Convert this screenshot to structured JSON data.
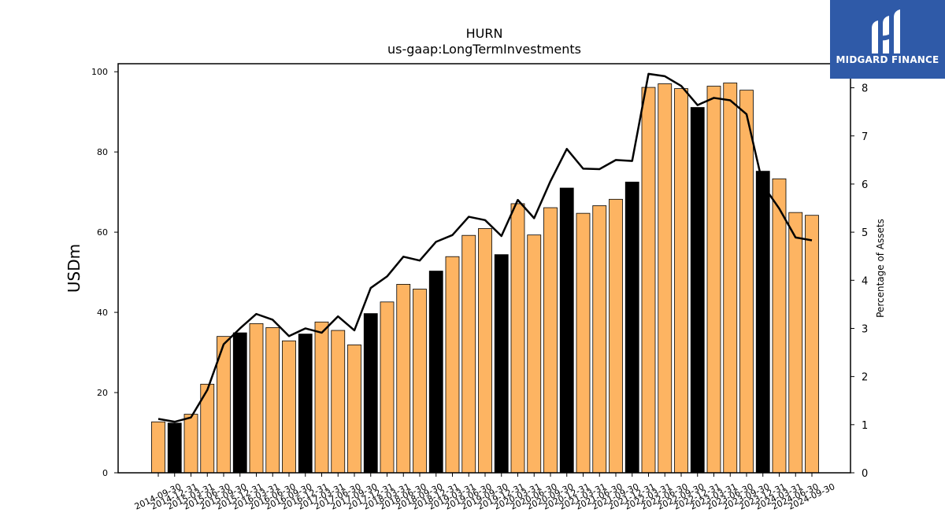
{
  "chart_data": {
    "type": "bar",
    "title": "HURN",
    "subtitle": "us-gaap:LongTermInvestments",
    "ylabel": "USDm",
    "ylabel_right": "Percentage of Assets",
    "ylim": [
      0,
      102
    ],
    "ylim_right": [
      0,
      8.5
    ],
    "yticks": [
      0,
      20,
      40,
      60,
      80,
      100
    ],
    "yticks_right": [
      0,
      1,
      2,
      3,
      4,
      5,
      6,
      7,
      8
    ],
    "categories": [
      "2014-09-30",
      "2014-12-31",
      "2015-03-31",
      "2015-06-30",
      "2015-09-30",
      "2015-12-31",
      "2016-03-31",
      "2016-06-30",
      "2016-09-30",
      "2016-12-31",
      "2017-03-31",
      "2017-06-30",
      "2017-09-30",
      "2017-12-31",
      "2018-03-31",
      "2018-06-30",
      "2018-09-30",
      "2018-12-31",
      "2019-03-31",
      "2019-06-30",
      "2019-09-30",
      "2019-12-31",
      "2020-03-31",
      "2020-06-30",
      "2020-09-30",
      "2020-12-31",
      "2021-03-31",
      "2021-06-30",
      "2021-09-30",
      "2021-12-31",
      "2022-03-31",
      "2022-06-30",
      "2022-09-30",
      "2022-12-31",
      "2023-03-31",
      "2023-06-30",
      "2023-09-30",
      "2023-12-31",
      "2024-03-31",
      "2024-06-30",
      "2024-09-30"
    ],
    "series": [
      {
        "type": "bar",
        "axis": "left",
        "values": [
          12.7,
          12.4,
          14.6,
          22.1,
          34.0,
          34.9,
          37.2,
          36.2,
          32.9,
          34.6,
          37.6,
          35.5,
          31.9,
          39.7,
          42.6,
          47.0,
          45.8,
          50.3,
          53.9,
          59.2,
          60.9,
          54.4,
          67.1,
          59.3,
          66.1,
          71.0,
          64.7,
          66.6,
          68.2,
          72.5,
          96.1,
          97.0,
          95.8,
          91.1,
          96.4,
          97.2,
          95.4,
          75.2,
          73.3,
          64.9,
          64.2
        ],
        "highlight_every_4_from_index": 1,
        "color": "#fdb462",
        "highlight_color": "#000000"
      },
      {
        "type": "line",
        "axis": "right",
        "color": "#000000",
        "values": [
          1.12,
          1.06,
          1.15,
          1.72,
          2.67,
          3.0,
          3.3,
          3.18,
          2.84,
          3.0,
          2.91,
          3.25,
          2.96,
          3.84,
          4.08,
          4.49,
          4.41,
          4.8,
          4.94,
          5.32,
          5.25,
          4.92,
          5.67,
          5.29,
          6.06,
          6.73,
          6.32,
          6.31,
          6.5,
          6.48,
          8.29,
          8.24,
          8.04,
          7.64,
          7.79,
          7.74,
          7.45,
          5.98,
          5.49,
          4.89,
          4.83
        ]
      }
    ],
    "grid": false,
    "legend": "none"
  },
  "logo": {
    "text": "MIDGARD FINANCE",
    "icon": "midgard-logo-icon"
  }
}
